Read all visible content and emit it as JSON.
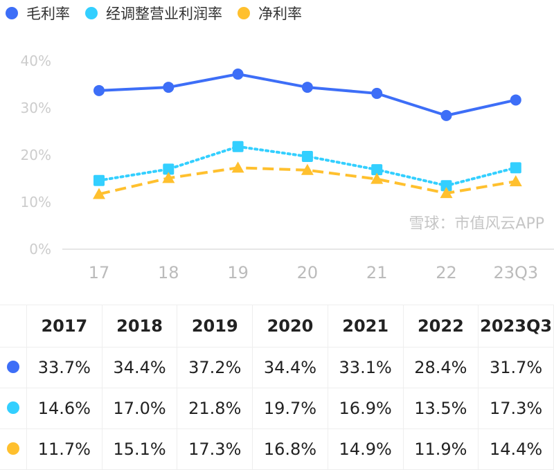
{
  "chart_data": {
    "type": "line",
    "categories": [
      "17",
      "18",
      "19",
      "20",
      "21",
      "22",
      "23Q3"
    ],
    "yticks": [
      "0%",
      "10%",
      "20%",
      "30%",
      "40%"
    ],
    "ylim": [
      0,
      40
    ],
    "grid": false,
    "legend_placement": "top-left",
    "series": [
      {
        "name": "毛利率",
        "color": "#3d6ef7",
        "marker": "circle",
        "line": "solid",
        "values": [
          33.7,
          34.4,
          37.2,
          34.4,
          33.1,
          28.4,
          31.7
        ]
      },
      {
        "name": "经调整营业利润率",
        "color": "#33cfff",
        "marker": "square",
        "line": "dotted",
        "values": [
          14.6,
          17.0,
          21.8,
          19.7,
          16.9,
          13.5,
          17.3
        ]
      },
      {
        "name": "净利率",
        "color": "#ffc02e",
        "marker": "triangle",
        "line": "dashed",
        "values": [
          11.7,
          15.1,
          17.3,
          16.8,
          14.9,
          11.9,
          14.4
        ]
      }
    ]
  },
  "table": {
    "headers": [
      "2017",
      "2018",
      "2019",
      "2020",
      "2021",
      "2022",
      "2023Q3"
    ],
    "rows": [
      [
        "33.7%",
        "34.4%",
        "37.2%",
        "34.4%",
        "33.1%",
        "28.4%",
        "31.7%"
      ],
      [
        "14.6%",
        "17.0%",
        "21.8%",
        "19.7%",
        "16.9%",
        "13.5%",
        "17.3%"
      ],
      [
        "11.7%",
        "15.1%",
        "17.3%",
        "16.8%",
        "14.9%",
        "11.9%",
        "14.4%"
      ]
    ]
  },
  "watermark": "雪球：市值风云APP"
}
